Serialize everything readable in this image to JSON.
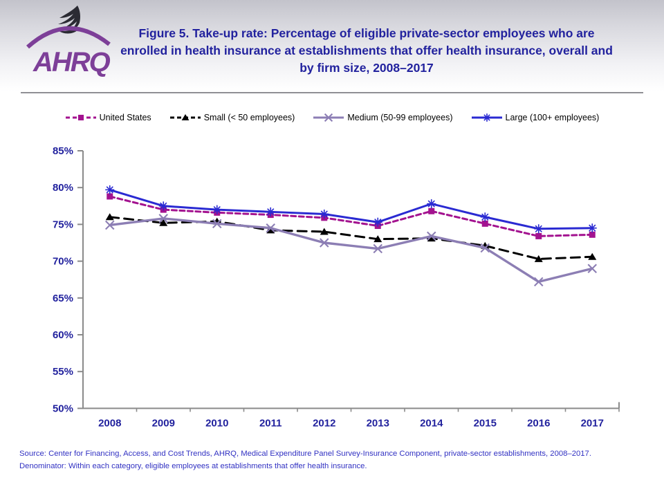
{
  "header": {
    "title": "Figure 5. Take-up rate: Percentage of eligible private-sector employees who are enrolled in health insurance at establishments that offer health insurance, overall and by firm size, 2008–2017",
    "logo_text": "AHRQ"
  },
  "colors": {
    "united_states": "#a3128f",
    "small": "#000000",
    "medium": "#8c7eb4",
    "large": "#2a2ad2",
    "axis": "#8a8a8a",
    "navy_text": "#22229e",
    "footer_text": "#3131c2"
  },
  "chart_data": {
    "type": "line",
    "title": "Figure 5. Take-up rate: Percentage of eligible private-sector employees who are enrolled in health insurance at establishments that offer health insurance, overall and by firm size, 2008–2017",
    "categories": [
      "2008",
      "2009",
      "2010",
      "2011",
      "2012",
      "2013",
      "2014",
      "2015",
      "2016",
      "2017"
    ],
    "series": [
      {
        "name": "United States",
        "values": [
          78.8,
          77.0,
          76.6,
          76.3,
          75.9,
          74.8,
          76.8,
          75.1,
          73.4,
          73.6
        ],
        "color": "#a3128f",
        "marker": "square",
        "line": "dashed"
      },
      {
        "name": "Small (< 50 employees)",
        "values": [
          76.0,
          75.2,
          75.4,
          74.2,
          74.0,
          73.0,
          73.1,
          72.1,
          70.3,
          70.6
        ],
        "color": "#000000",
        "marker": "triangle",
        "line": "longdash"
      },
      {
        "name": "Medium (50-99 employees)",
        "values": [
          74.9,
          75.8,
          75.1,
          74.5,
          72.5,
          71.7,
          73.4,
          71.8,
          67.2,
          69.0
        ],
        "color": "#8c7eb4",
        "marker": "x",
        "line": "solid"
      },
      {
        "name": "Large (100+ employees)",
        "values": [
          79.7,
          77.5,
          77.0,
          76.7,
          76.4,
          75.3,
          77.8,
          76.0,
          74.4,
          74.5
        ],
        "color": "#2a2ad2",
        "marker": "asterisk",
        "line": "solid"
      }
    ],
    "xlabel": "",
    "ylabel": "",
    "ylim": [
      50,
      85
    ],
    "ytick_step": 5,
    "y_tick_labels": [
      "85%",
      "80%",
      "75%",
      "70%",
      "65%",
      "60%",
      "55%",
      "50%"
    ],
    "grid": false,
    "legend_position": "top"
  },
  "legend": [
    {
      "label": "United States"
    },
    {
      "label": "Small (< 50 employees)"
    },
    {
      "label": "Medium (50-99 employees)"
    },
    {
      "label": "Large (100+ employees)"
    }
  ],
  "footer": {
    "line1": "Source: Center for Financing, Access, and Cost Trends, AHRQ, Medical Expenditure Panel Survey-Insurance Component, private-sector establishments, 2008–2017.",
    "line2": "Denominator: Within each category, eligible employees at establishments that offer health insurance."
  }
}
